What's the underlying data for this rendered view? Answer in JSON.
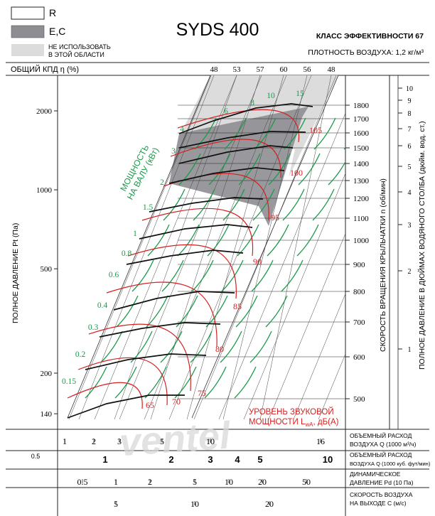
{
  "chart_data": {
    "type": "line",
    "title": "SYDS 400",
    "efficiency_class": "КЛАСС ЭФФЕКТИВНОСТИ 67",
    "air_density": "ПЛОТНОСТЬ ВОЗДУХА: 1,2 кг/м³",
    "legend": [
      {
        "swatch": "white",
        "label": "R"
      },
      {
        "swatch": "darkgray",
        "label": "E,C"
      },
      {
        "swatch": "lightgray",
        "label": "НЕ ИСПОЛЬЗОВАТЬ В ЭТОЙ ОБЛАСТИ"
      }
    ],
    "efficiency_label": "ОБЩИЙ КПД η (%)",
    "efficiency_ticks": [
      "48",
      "53",
      "57",
      "60",
      "56",
      "48"
    ],
    "ylabel_left": "ПОЛНОЕ ДАВЛЕНИЕ Pt (Па)",
    "yticks_left": [
      140,
      200,
      500,
      1000,
      2000
    ],
    "ylabel_right_speed": "СКОРОСТЬ ВРАЩЕНИЯ КРЫЛЬЧАТКИ n (об/мин)",
    "speed_ticks": [
      1800,
      1700,
      1600,
      1500,
      1400,
      1300,
      1200,
      1100,
      1000,
      900,
      800,
      700,
      600,
      500
    ],
    "ylabel_right_inwg": "ПОЛНОЕ ДАВЛЕНИЕ В ДЮЙМАХ ВОДЯНОГО СТОЛБА (дюйм. вод. ст.)",
    "inwg_ticks": [
      "10",
      "9",
      "8",
      "7",
      "6",
      "5",
      "4",
      "3",
      "2",
      "1"
    ],
    "power_label": "МОЩНОСТЬ НА ВАЛУ (кВт)",
    "power_values": [
      "15",
      "10",
      "8",
      "6",
      "4",
      "3",
      "2",
      "1.5",
      "1",
      "0.8",
      "0.6",
      "0.4",
      "0.3",
      "0.2",
      "0.15"
    ],
    "sound_label": "УРОВЕНЬ ЗВУКОВОЙ МОЩНОСТИ LwA, дБ(А)",
    "sound_values": [
      "105",
      "100",
      "95",
      "90",
      "85",
      "80",
      "75",
      "70",
      "65"
    ],
    "axes_bottom": [
      {
        "label": "ОБЪЕМНЫЙ РАСХОД ВОЗДУХА Q (1000 м³/ч)",
        "ticks": [
          "1",
          "2",
          "3",
          "5",
          "10",
          "16"
        ]
      },
      {
        "label": "ОБЪЕМНЫЙ РАСХОД ВОЗДУХА Q (1000 куб. фут/мин)",
        "ticks": [
          "0.5",
          "1",
          "2",
          "3",
          "4",
          "5",
          "10"
        ]
      },
      {
        "label": "ДИНАМИЧЕСКОЕ ДАВЛЕНИЕ Pd (10 Па)",
        "ticks": [
          "0.5",
          "1",
          "2",
          "5",
          "10",
          "20",
          "50"
        ]
      },
      {
        "label": "СКОРОСТЬ ВОЗДУХА НА ВЫХОДЕ C (м/с)",
        "ticks": [
          "5",
          "10",
          "20"
        ]
      }
    ],
    "watermark": "ventel",
    "colors": {
      "speed": "#111111",
      "power": "#1a9a4a",
      "sound": "#d42020",
      "shade_ec": "#8e8e92",
      "shade_avoid": "#dcdcdc"
    }
  }
}
